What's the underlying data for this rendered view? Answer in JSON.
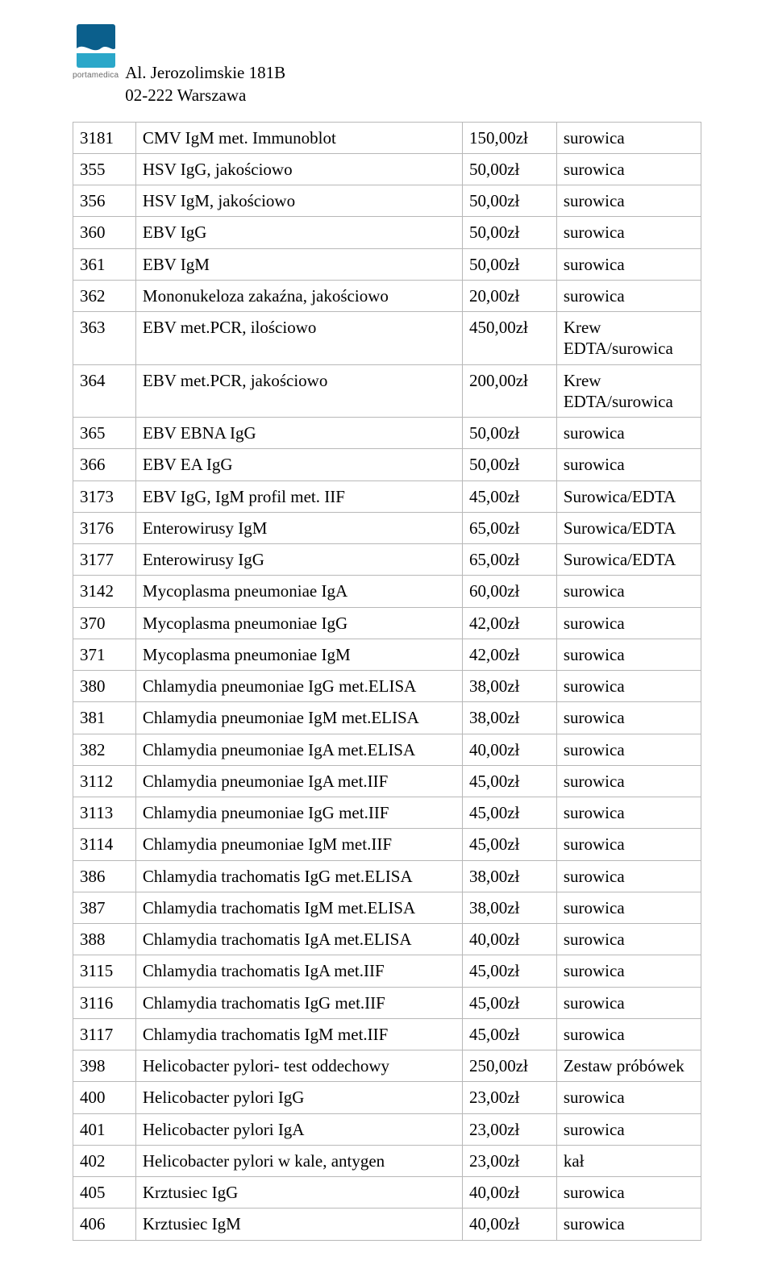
{
  "brand": "portamedica",
  "logo_colors": {
    "top": "#0b5f8c",
    "mid": "#1b86b0",
    "wave": "#ffffff",
    "bottom": "#2ba7c9"
  },
  "address": {
    "line1": "Al. Jerozolimskie 181B",
    "line2": "02-222 Warszawa"
  },
  "table": {
    "columns": [
      "code",
      "name",
      "price",
      "material"
    ],
    "border_color": "#b8b8b8",
    "font_size_pt": 15,
    "rows": [
      [
        "3181",
        "CMV IgM met. Immunoblot",
        "150,00zł",
        "surowica"
      ],
      [
        "355",
        "HSV IgG, jakościowo",
        "50,00zł",
        "surowica"
      ],
      [
        "356",
        "HSV IgM, jakościowo",
        "50,00zł",
        "surowica"
      ],
      [
        "360",
        "EBV IgG",
        "50,00zł",
        "surowica"
      ],
      [
        "361",
        "EBV IgM",
        "50,00zł",
        "surowica"
      ],
      [
        "362",
        "Mononukeloza zakaźna, jakościowo",
        "20,00zł",
        "surowica"
      ],
      [
        "363",
        "EBV met.PCR, ilościowo",
        "450,00zł",
        "Krew EDTA/surowica"
      ],
      [
        "364",
        "EBV met.PCR, jakościowo",
        "200,00zł",
        "Krew EDTA/surowica"
      ],
      [
        "365",
        "EBV EBNA IgG",
        "50,00zł",
        "surowica"
      ],
      [
        "366",
        "EBV EA IgG",
        "50,00zł",
        "surowica"
      ],
      [
        "3173",
        "EBV IgG, IgM profil met. IIF",
        "45,00zł",
        "Surowica/EDTA"
      ],
      [
        "3176",
        "Enterowirusy IgM",
        "65,00zł",
        "Surowica/EDTA"
      ],
      [
        "3177",
        "Enterowirusy IgG",
        "65,00zł",
        "Surowica/EDTA"
      ],
      [
        "3142",
        "Mycoplasma pneumoniae IgA",
        "60,00zł",
        "surowica"
      ],
      [
        "370",
        "Mycoplasma pneumoniae IgG",
        "42,00zł",
        "surowica"
      ],
      [
        "371",
        "Mycoplasma pneumoniae IgM",
        "42,00zł",
        "surowica"
      ],
      [
        "380",
        "Chlamydia pneumoniae IgG met.ELISA",
        "38,00zł",
        "surowica"
      ],
      [
        "381",
        "Chlamydia pneumoniae IgM met.ELISA",
        "38,00zł",
        "surowica"
      ],
      [
        "382",
        "Chlamydia pneumoniae IgA met.ELISA",
        "40,00zł",
        "surowica"
      ],
      [
        "3112",
        "Chlamydia pneumoniae IgA met.IIF",
        "45,00zł",
        "surowica"
      ],
      [
        "3113",
        "Chlamydia pneumoniae IgG met.IIF",
        "45,00zł",
        "surowica"
      ],
      [
        "3114",
        "Chlamydia pneumoniae IgM met.IIF",
        "45,00zł",
        "surowica"
      ],
      [
        "386",
        "Chlamydia trachomatis IgG met.ELISA",
        "38,00zł",
        "surowica"
      ],
      [
        "387",
        "Chlamydia trachomatis IgM met.ELISA",
        "38,00zł",
        "surowica"
      ],
      [
        "388",
        "Chlamydia trachomatis IgA met.ELISA",
        "40,00zł",
        "surowica"
      ],
      [
        "3115",
        "Chlamydia trachomatis IgA met.IIF",
        "45,00zł",
        "surowica"
      ],
      [
        "3116",
        "Chlamydia trachomatis IgG met.IIF",
        "45,00zł",
        "surowica"
      ],
      [
        "3117",
        "Chlamydia trachomatis IgM met.IIF",
        "45,00zł",
        "surowica"
      ],
      [
        "398",
        "Helicobacter pylori- test oddechowy",
        "250,00zł",
        "Zestaw próbówek"
      ],
      [
        "400",
        "Helicobacter pylori IgG",
        "23,00zł",
        "surowica"
      ],
      [
        "401",
        "Helicobacter pylori IgA",
        "23,00zł",
        "surowica"
      ],
      [
        "402",
        "Helicobacter pylori w kale, antygen",
        "23,00zł",
        "kał"
      ],
      [
        "405",
        "Krztusiec IgG",
        "40,00zł",
        "surowica"
      ],
      [
        "406",
        "Krztusiec IgM",
        "40,00zł",
        "surowica"
      ]
    ]
  }
}
